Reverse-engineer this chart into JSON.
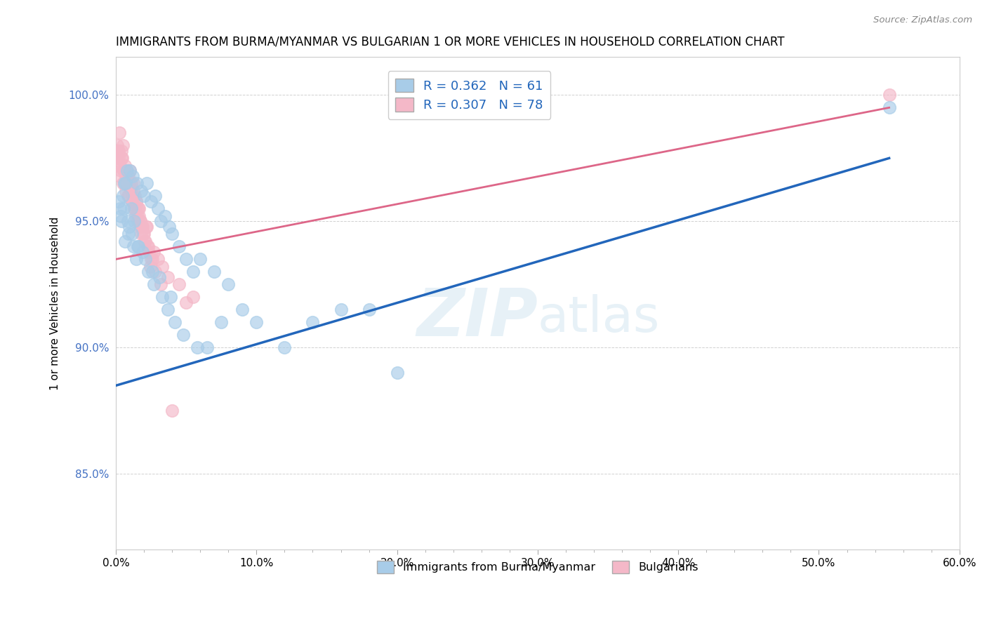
{
  "title": "IMMIGRANTS FROM BURMA/MYANMAR VS BULGARIAN 1 OR MORE VEHICLES IN HOUSEHOLD CORRELATION CHART",
  "source": "Source: ZipAtlas.com",
  "ylabel": "1 or more Vehicles in Household",
  "xlim": [
    0.0,
    60.0
  ],
  "ylim": [
    82.0,
    101.5
  ],
  "x_ticks": [
    0.0,
    10.0,
    20.0,
    30.0,
    40.0,
    50.0,
    60.0
  ],
  "y_ticks": [
    85.0,
    90.0,
    95.0,
    100.0
  ],
  "y_tick_labels": [
    "85.0%",
    "90.0%",
    "95.0%",
    "100.0%"
  ],
  "x_tick_labels": [
    "0.0%",
    "10.0%",
    "20.0%",
    "30.0%",
    "40.0%",
    "50.0%",
    "60.0%"
  ],
  "blue_color": "#a8cce8",
  "pink_color": "#f4b8c8",
  "blue_R": 0.362,
  "blue_N": 61,
  "pink_R": 0.307,
  "pink_N": 78,
  "blue_line_color": "#2266bb",
  "pink_line_color": "#dd6688",
  "watermark_zip": "ZIP",
  "watermark_atlas": "atlas",
  "legend_blue": "Immigrants from Burma/Myanmar",
  "legend_pink": "Bulgarians",
  "blue_x": [
    0.3,
    0.5,
    0.6,
    0.8,
    1.0,
    1.2,
    1.5,
    1.8,
    2.0,
    2.2,
    2.5,
    2.8,
    3.0,
    3.2,
    3.5,
    3.8,
    4.0,
    4.5,
    5.0,
    5.5,
    0.4,
    0.7,
    0.9,
    1.1,
    1.3,
    1.6,
    1.9,
    2.3,
    2.7,
    3.3,
    3.7,
    4.2,
    4.8,
    6.0,
    7.0,
    8.0,
    9.0,
    10.0,
    12.0,
    14.0,
    16.0,
    18.0,
    20.0,
    5.8,
    6.5,
    7.5,
    0.2,
    0.35,
    0.55,
    0.65,
    0.85,
    0.95,
    1.15,
    1.25,
    1.45,
    1.55,
    2.1,
    2.6,
    3.1,
    3.9,
    55.0
  ],
  "blue_y": [
    95.5,
    96.0,
    96.5,
    97.0,
    97.0,
    96.8,
    96.5,
    96.2,
    96.0,
    96.5,
    95.8,
    96.0,
    95.5,
    95.0,
    95.2,
    94.8,
    94.5,
    94.0,
    93.5,
    93.0,
    95.0,
    96.5,
    94.5,
    95.5,
    95.0,
    94.0,
    93.8,
    93.0,
    92.5,
    92.0,
    91.5,
    91.0,
    90.5,
    93.5,
    93.0,
    92.5,
    91.5,
    91.0,
    90.0,
    91.0,
    91.5,
    91.5,
    89.0,
    90.0,
    90.0,
    91.0,
    95.8,
    95.2,
    95.5,
    94.2,
    95.0,
    94.8,
    94.5,
    94.0,
    93.5,
    94.0,
    93.5,
    93.0,
    92.8,
    92.0,
    99.5
  ],
  "pink_x": [
    0.05,
    0.1,
    0.15,
    0.2,
    0.25,
    0.3,
    0.35,
    0.4,
    0.45,
    0.5,
    0.55,
    0.6,
    0.65,
    0.7,
    0.75,
    0.8,
    0.85,
    0.9,
    0.95,
    1.0,
    1.05,
    1.1,
    1.15,
    1.2,
    1.25,
    1.3,
    1.35,
    1.4,
    1.45,
    1.5,
    1.55,
    1.6,
    1.65,
    1.7,
    1.75,
    1.8,
    1.9,
    2.0,
    2.1,
    2.2,
    2.3,
    2.5,
    2.7,
    3.0,
    3.3,
    3.7,
    4.0,
    4.5,
    5.0,
    5.5,
    0.12,
    0.22,
    0.32,
    0.42,
    0.52,
    0.62,
    0.72,
    0.82,
    0.92,
    1.02,
    1.12,
    1.22,
    1.32,
    1.42,
    1.52,
    1.62,
    1.72,
    1.82,
    1.92,
    2.02,
    2.12,
    2.22,
    2.32,
    2.42,
    2.6,
    2.8,
    3.2,
    55.0
  ],
  "pink_y": [
    97.5,
    98.0,
    97.8,
    97.5,
    98.5,
    97.2,
    97.0,
    97.8,
    97.5,
    98.0,
    97.0,
    96.5,
    97.2,
    96.8,
    97.0,
    96.5,
    96.0,
    96.8,
    96.5,
    97.0,
    96.2,
    96.5,
    95.8,
    96.0,
    96.5,
    95.5,
    96.0,
    95.2,
    95.8,
    95.5,
    95.0,
    95.5,
    95.2,
    94.8,
    95.0,
    94.5,
    94.8,
    94.5,
    94.2,
    94.8,
    94.0,
    93.5,
    93.8,
    93.5,
    93.2,
    92.8,
    87.5,
    92.5,
    91.8,
    92.0,
    97.2,
    97.8,
    96.8,
    97.5,
    96.5,
    97.0,
    96.2,
    96.8,
    96.0,
    96.5,
    95.8,
    96.2,
    95.5,
    95.8,
    95.2,
    95.5,
    95.0,
    94.8,
    94.5,
    94.2,
    94.8,
    94.0,
    93.8,
    93.2,
    93.5,
    93.0,
    92.5,
    100.0
  ],
  "blue_trend_x": [
    0.0,
    55.0
  ],
  "blue_trend_y": [
    88.5,
    97.5
  ],
  "pink_trend_x": [
    0.0,
    55.0
  ],
  "pink_trend_y": [
    93.5,
    99.5
  ]
}
